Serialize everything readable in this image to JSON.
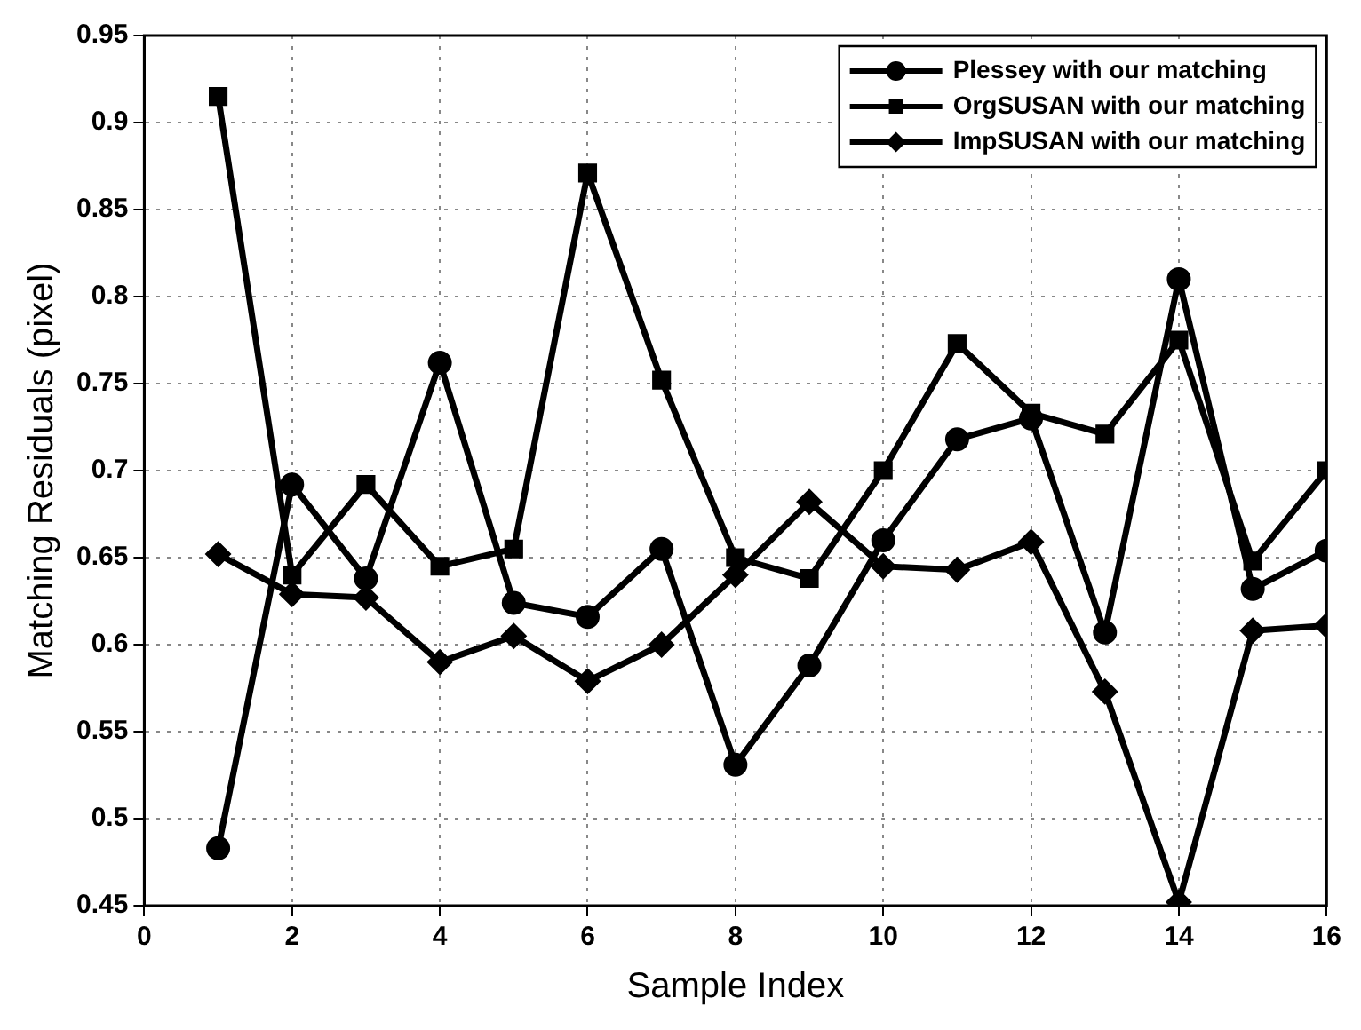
{
  "chart_data": {
    "type": "line",
    "xlabel": "Sample Index",
    "ylabel": "Matching Residuals (pixel)",
    "x": [
      1,
      2,
      3,
      4,
      5,
      6,
      7,
      8,
      9,
      10,
      11,
      12,
      13,
      14,
      15,
      16
    ],
    "xlim": [
      0,
      16
    ],
    "xticks": [
      0,
      2,
      4,
      6,
      8,
      10,
      12,
      14,
      16
    ],
    "ylim": [
      0.45,
      0.95
    ],
    "yticks": [
      0.45,
      0.5,
      0.55,
      0.6,
      0.65,
      0.7,
      0.75,
      0.8,
      0.85,
      0.9,
      0.95
    ],
    "grid": true,
    "legend": "top right",
    "line_style": "solid",
    "series": [
      {
        "name": "Plessey with our matching",
        "color": "#000000",
        "marker": "circle",
        "values": [
          0.483,
          0.692,
          0.638,
          0.762,
          0.624,
          0.616,
          0.655,
          0.531,
          0.588,
          0.66,
          0.718,
          0.73,
          0.607,
          0.81,
          0.632,
          0.654
        ]
      },
      {
        "name": "OrgSUSAN with our matching",
        "color": "#000000",
        "marker": "square",
        "values": [
          0.915,
          0.64,
          0.692,
          0.645,
          0.655,
          0.871,
          0.752,
          0.65,
          0.638,
          0.7,
          0.773,
          0.733,
          0.721,
          0.775,
          0.648,
          0.7
        ]
      },
      {
        "name": "ImpSUSAN with our matching",
        "color": "#000000",
        "marker": "diamond",
        "values": [
          0.652,
          0.629,
          0.627,
          0.59,
          0.605,
          0.579,
          0.6,
          0.64,
          0.682,
          0.645,
          0.643,
          0.659,
          0.573,
          0.452,
          0.608,
          0.611
        ]
      }
    ]
  }
}
